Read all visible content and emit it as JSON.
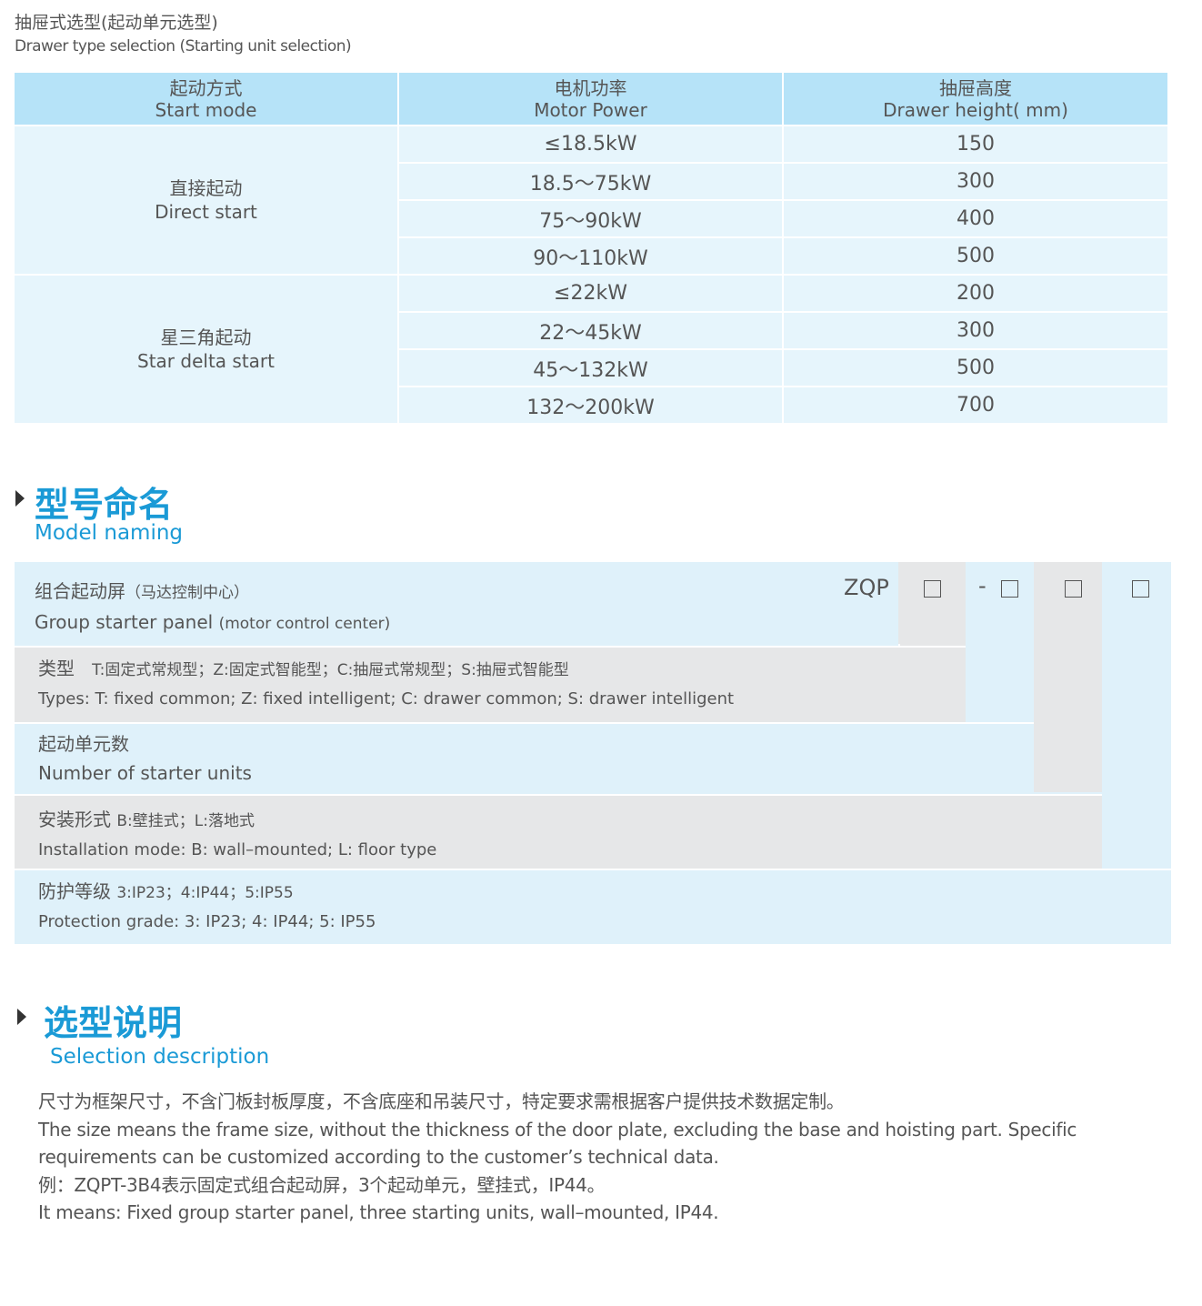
{
  "header": {
    "title_cn": "抽屉式选型(起动单元选型)",
    "title_en": "Drawer type selection (Starting unit selection)"
  },
  "table": {
    "columns": [
      {
        "cn": "起动方式",
        "en": "Start mode"
      },
      {
        "cn": "电机功率",
        "en": "Motor Power"
      },
      {
        "cn": "抽屉高度",
        "en": "Drawer height( mm)"
      }
    ],
    "groups": [
      {
        "cn": "直接起动",
        "en": "Direct start",
        "rows": [
          [
            "≤18.5kW",
            "150"
          ],
          [
            "18.5～75kW",
            "300"
          ],
          [
            "75～90kW",
            "400"
          ],
          [
            "90～110kW",
            "500"
          ]
        ]
      },
      {
        "cn": "星三角起动",
        "en": "Star delta start",
        "rows": [
          [
            "≤22kW",
            "200"
          ],
          [
            "22～45kW",
            "300"
          ],
          [
            "45～132kW",
            "500"
          ],
          [
            "132～200kW",
            "700"
          ]
        ]
      }
    ]
  },
  "naming": {
    "title_cn": "型号命名",
    "title_en": "Model naming",
    "code_prefix": "ZQP",
    "dash": "-",
    "rows": [
      {
        "cn": "组合起动屏",
        "cn_note": "（马达控制中心）",
        "en": "Group starter panel",
        "en_note": "(motor control center)"
      },
      {
        "cn": "类型",
        "cn_note": "T:固定式常规型；Z:固定式智能型；C:抽屉式常规型；S:抽屉式智能型",
        "en": "Types: T: fixed common; Z: fixed intelligent; C: drawer common; S: drawer intelligent"
      },
      {
        "cn": "起动单元数",
        "en": "Number  of  starter units"
      },
      {
        "cn": "安装形式",
        "cn_note": "B:壁挂式；L:落地式",
        "en": "Installation mode: B: wall–mounted; L: floor type"
      },
      {
        "cn": "防护等级",
        "cn_note": "3:IP23；4:IP44；5:IP55",
        "en": "Protection grade:  3: IP23; 4: IP44; 5: IP55"
      }
    ]
  },
  "selection": {
    "title_cn": "选型说明",
    "title_en": "Selection description",
    "lines": [
      "尺寸为框架尺寸，不含门板封板厚度，不含底座和吊装尺寸，特定要求需根据客户提供技术数据定制。",
      "The size means the frame size, without the thickness of the door plate, excluding the base and hoisting part. Specific requirements can be customized according to the customer’s technical data.",
      "例：ZQPT-3B4表示固定式组合起动屏，3个起动单元，壁挂式，IP44。",
      "It means: Fixed group starter panel, three starting units, wall–mounted, IP44."
    ]
  },
  "colors": {
    "accent": "#1a9ad6",
    "header_blue": "#b6e3f8",
    "cell_blue": "#e6f5fc",
    "gray": "#e6e7e8"
  }
}
